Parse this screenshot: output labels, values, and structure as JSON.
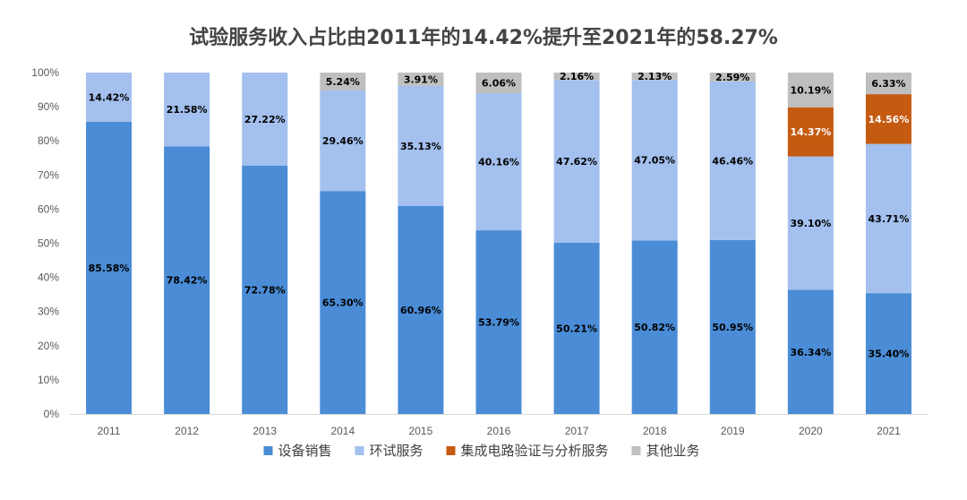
{
  "chart_data": {
    "type": "bar",
    "stacked": true,
    "percent": true,
    "title": "试验服务收入占比由2011年的14.42%提升至2021年的58.27%",
    "xlabel": "",
    "ylabel": "",
    "ylim": [
      0,
      100
    ],
    "yticks": [
      "0%",
      "10%",
      "20%",
      "30%",
      "40%",
      "50%",
      "60%",
      "70%",
      "80%",
      "90%",
      "100%"
    ],
    "categories": [
      "2011",
      "2012",
      "2013",
      "2014",
      "2015",
      "2016",
      "2017",
      "2018",
      "2019",
      "2020",
      "2021"
    ],
    "grid": false,
    "legend_position": "bottom",
    "series": [
      {
        "name": "设备销售",
        "color": "#4A8CD6",
        "values": [
          85.58,
          78.42,
          72.78,
          65.3,
          60.96,
          53.79,
          50.21,
          50.82,
          50.95,
          36.34,
          35.4
        ],
        "labels": [
          "85.58%",
          "78.42%",
          "72.78%",
          "65.30%",
          "60.96%",
          "53.79%",
          "50.21%",
          "50.82%",
          "50.95%",
          "36.34%",
          "35.40%"
        ],
        "label_color": "#000000"
      },
      {
        "name": "环试服务",
        "color": "#A3C0EE",
        "values": [
          14.42,
          21.58,
          27.22,
          29.46,
          35.13,
          40.16,
          47.62,
          47.05,
          46.46,
          39.1,
          43.71
        ],
        "labels": [
          "14.42%",
          "21.58%",
          "27.22%",
          "29.46%",
          "35.13%",
          "40.16%",
          "47.62%",
          "47.05%",
          "46.46%",
          "39.10%",
          "43.71%"
        ],
        "label_color": "#000000"
      },
      {
        "name": "集成电路验证与分析服务",
        "color": "#C55A11",
        "values": [
          0,
          0,
          0,
          0,
          0,
          0,
          0,
          0,
          0,
          14.37,
          14.56
        ],
        "labels": [
          "",
          "",
          "",
          "",
          "",
          "",
          "",
          "",
          "",
          "14.37%",
          "14.56%"
        ],
        "label_color": "#FFFFFF"
      },
      {
        "name": "其他业务",
        "color": "#BFBFBF",
        "values": [
          0,
          0,
          0,
          5.24,
          3.91,
          6.06,
          2.16,
          2.13,
          2.59,
          10.19,
          6.33
        ],
        "labels": [
          "",
          "",
          "",
          "5.24%",
          "3.91%",
          "6.06%",
          "2.16%",
          "2.13%",
          "2.59%",
          "10.19%",
          "6.33%"
        ],
        "label_color": "#000000"
      }
    ]
  }
}
